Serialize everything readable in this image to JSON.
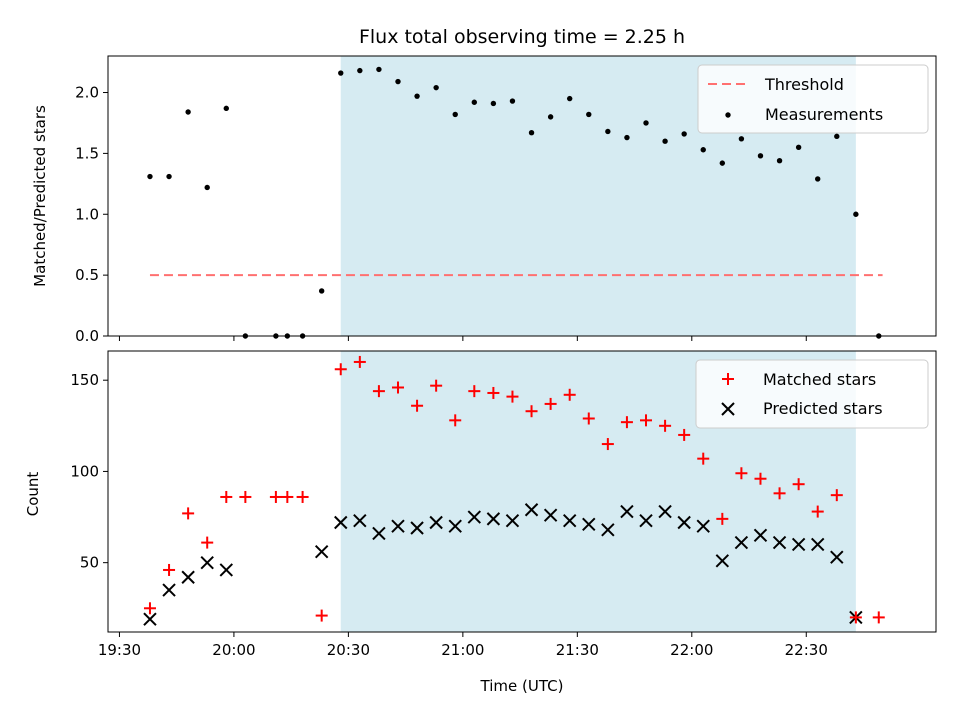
{
  "chart_data": [
    {
      "type": "scatter",
      "title": "Flux total observing time = 2.25 h",
      "xlabel": "",
      "ylabel": "Matched/Predicted stars",
      "xlim": [
        "19:27",
        "23:04"
      ],
      "ylim": [
        0,
        2.3
      ],
      "yticks": [
        0.0,
        0.5,
        1.0,
        1.5,
        2.0
      ],
      "ytick_labels": [
        "0.0",
        "0.5",
        "1.0",
        "1.5",
        "2.0"
      ],
      "shaded_span": {
        "start": "20:28",
        "end": "22:43",
        "color": "#add8e6"
      },
      "legend": {
        "location": "top-right",
        "entries": [
          "Threshold",
          "Measurements"
        ]
      },
      "threshold": {
        "name": "Threshold",
        "value": 0.5,
        "x_start": "19:38",
        "x_end": "22:50",
        "color": "#ff7070"
      },
      "series": [
        {
          "name": "Measurements",
          "color": "#000000",
          "marker": "dot",
          "x": [
            "19:38",
            "19:43",
            "19:48",
            "19:53",
            "19:58",
            "20:03",
            "20:11",
            "20:14",
            "20:18",
            "20:23",
            "20:28",
            "20:33",
            "20:38",
            "20:43",
            "20:48",
            "20:53",
            "20:58",
            "21:03",
            "21:08",
            "21:13",
            "21:18",
            "21:23",
            "21:28",
            "21:33",
            "21:38",
            "21:43",
            "21:48",
            "21:53",
            "21:58",
            "22:03",
            "22:08",
            "22:13",
            "22:18",
            "22:23",
            "22:28",
            "22:33",
            "22:38",
            "22:43",
            "22:49"
          ],
          "y": [
            1.31,
            1.31,
            1.84,
            1.22,
            1.87,
            0.0,
            0.0,
            0.0,
            0.0,
            0.37,
            2.16,
            2.18,
            2.19,
            2.09,
            1.97,
            2.04,
            1.82,
            1.92,
            1.91,
            1.93,
            1.67,
            1.8,
            1.95,
            1.82,
            1.68,
            1.63,
            1.75,
            1.6,
            1.66,
            1.53,
            1.42,
            1.62,
            1.48,
            1.44,
            1.55,
            1.29,
            1.64,
            1.0,
            0.0
          ]
        }
      ]
    },
    {
      "type": "scatter",
      "title": "",
      "xlabel": "Time (UTC)",
      "ylabel": "Count",
      "xlim": [
        "19:27",
        "23:04"
      ],
      "ylim": [
        12,
        166
      ],
      "yticks": [
        50,
        100,
        150
      ],
      "ytick_labels": [
        "50",
        "100",
        "150"
      ],
      "xticks": [
        "19:30",
        "20:00",
        "20:30",
        "21:00",
        "21:30",
        "22:00",
        "22:30"
      ],
      "xtick_labels": [
        "19:30",
        "20:00",
        "20:30",
        "21:00",
        "21:30",
        "22:00",
        "22:30"
      ],
      "shaded_span": {
        "start": "20:28",
        "end": "22:43",
        "color": "#add8e6"
      },
      "legend": {
        "location": "top-right",
        "entries": [
          "Matched stars",
          "Predicted stars"
        ]
      },
      "series": [
        {
          "name": "Matched stars",
          "color": "#ff0000",
          "marker": "plus",
          "x": [
            "19:38",
            "19:43",
            "19:48",
            "19:53",
            "19:58",
            "20:03",
            "20:11",
            "20:14",
            "20:18",
            "20:23",
            "20:28",
            "20:33",
            "20:38",
            "20:43",
            "20:48",
            "20:53",
            "20:58",
            "21:03",
            "21:08",
            "21:13",
            "21:18",
            "21:23",
            "21:28",
            "21:33",
            "21:38",
            "21:43",
            "21:48",
            "21:53",
            "21:58",
            "22:03",
            "22:08",
            "22:13",
            "22:18",
            "22:23",
            "22:28",
            "22:33",
            "22:38",
            "22:43",
            "22:49"
          ],
          "y": [
            25,
            46,
            77,
            61,
            86,
            86,
            86,
            86,
            86,
            21,
            156,
            160,
            144,
            146,
            136,
            147,
            128,
            144,
            143,
            141,
            133,
            137,
            142,
            129,
            115,
            127,
            128,
            125,
            120,
            107,
            74,
            99,
            96,
            88,
            93,
            78,
            87,
            20,
            20
          ]
        },
        {
          "name": "Predicted stars",
          "color": "#000000",
          "marker": "x",
          "x": [
            "19:38",
            "19:43",
            "19:48",
            "19:53",
            "19:58",
            "20:23",
            "20:28",
            "20:33",
            "20:38",
            "20:43",
            "20:48",
            "20:53",
            "20:58",
            "21:03",
            "21:08",
            "21:13",
            "21:18",
            "21:23",
            "21:28",
            "21:33",
            "21:38",
            "21:43",
            "21:48",
            "21:53",
            "21:58",
            "22:03",
            "22:08",
            "22:13",
            "22:18",
            "22:23",
            "22:28",
            "22:33",
            "22:38",
            "22:43"
          ],
          "y": [
            19,
            35,
            42,
            50,
            46,
            56,
            72,
            73,
            66,
            70,
            69,
            72,
            70,
            75,
            74,
            73,
            79,
            76,
            73,
            71,
            68,
            78,
            73,
            78,
            72,
            70,
            51,
            61,
            65,
            61,
            60,
            60,
            53,
            20
          ]
        }
      ]
    }
  ]
}
